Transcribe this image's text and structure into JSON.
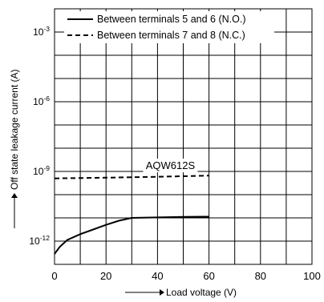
{
  "chart_data": {
    "type": "line",
    "title": "",
    "xlabel": "Load voltage (V)",
    "ylabel": "Off state leakage current (A)",
    "xlim": [
      0,
      100
    ],
    "ylim_exp": [
      -13,
      -2
    ],
    "y_scale": "log",
    "x_ticks": [
      "0",
      "20",
      "40",
      "60",
      "80",
      "100"
    ],
    "y_ticks": [
      {
        "base": "10",
        "exp": "-3",
        "value": -3
      },
      {
        "base": "10",
        "exp": "-6",
        "value": -6
      },
      {
        "base": "10",
        "exp": "-9",
        "value": -9
      },
      {
        "base": "10",
        "exp": "-12",
        "value": -12
      }
    ],
    "grid": true,
    "legend_position": "top",
    "series": [
      {
        "name": "Between terminals 5 and 6 (N.O.)",
        "style": "solid",
        "x": [
          0,
          2,
          5,
          10,
          15,
          20,
          25,
          30,
          40,
          50,
          60
        ],
        "log10_y": [
          -12.55,
          -12.25,
          -11.95,
          -11.7,
          -11.5,
          -11.3,
          -11.12,
          -11.0,
          -10.98,
          -10.96,
          -10.95
        ]
      },
      {
        "name": "Between terminals 7 and 8 (N.C.)",
        "style": "dashed",
        "x": [
          0,
          20,
          40,
          60
        ],
        "log10_y": [
          -9.3,
          -9.27,
          -9.23,
          -9.18
        ]
      }
    ],
    "annotations": [
      {
        "text": "AQW612S",
        "x": 45,
        "log10_y": -8.9
      }
    ]
  }
}
